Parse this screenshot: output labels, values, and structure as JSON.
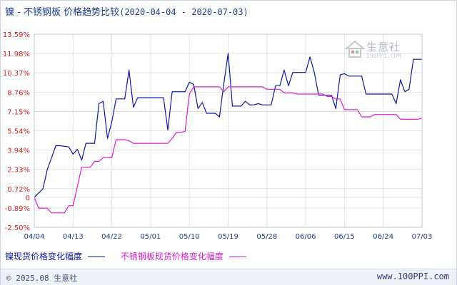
{
  "title": {
    "main": "镍 - 不锈钢板 价格趋势比较",
    "range": "(2020-04-04 - 2020-07-03)"
  },
  "legend": {
    "series1": "镍现货价格变化幅度",
    "series2": "不锈钢板现货价格变化幅度"
  },
  "footer": {
    "copyright": "© 2025.08 生意社",
    "url": "www.100PPI.com"
  },
  "watermark": {
    "text": "生意社",
    "url": "100PPI.COM"
  },
  "colors": {
    "series1": "#0a1aa8",
    "series2": "#e21bd9",
    "grid": "#e3e3e3",
    "axis_text": "#d02020",
    "x_text": "#1a3d8f"
  },
  "chart_data": {
    "type": "line",
    "title": "镍 - 不锈钢板 价格趋势比较(2020-04-04 - 2020-07-03)",
    "ylim": [
      -2.5,
      13.59
    ],
    "ytick_values": [
      13.59,
      11.98,
      10.37,
      8.76,
      7.15,
      5.54,
      3.94,
      2.33,
      0.72,
      0,
      -0.89,
      -2.5
    ],
    "ytick_labels": [
      "13.59%",
      "11.98%",
      "10.37%",
      "8.76%",
      "7.15%",
      "5.54%",
      "3.94%",
      "2.33%",
      "0.72%",
      "0",
      "-0.89%",
      "-2.50%"
    ],
    "xlim": [
      0,
      90
    ],
    "xtick_values": [
      0,
      9,
      18,
      27,
      36,
      45,
      54,
      63,
      72,
      81,
      90
    ],
    "xtick_labels": [
      "04/04",
      "04/13",
      "04/22",
      "05/01",
      "05/10",
      "05/19",
      "05/28",
      "06/06",
      "06/15",
      "06/24",
      "07/03"
    ],
    "grid": true,
    "legend_position": "bottom",
    "series": [
      {
        "name": "镍现货价格变化幅度",
        "x": [
          0,
          2,
          3,
          5,
          6,
          8,
          9,
          10,
          11,
          12,
          13,
          14,
          15,
          16,
          17,
          18,
          19,
          20,
          21,
          22,
          23,
          24,
          25,
          26,
          27,
          28,
          29,
          30,
          31,
          32,
          33,
          34,
          35,
          36,
          37,
          38,
          39,
          40,
          41,
          42,
          43,
          44,
          45,
          46,
          47,
          48,
          49,
          50,
          51,
          52,
          53,
          54,
          55,
          56,
          57,
          58,
          59,
          60,
          61,
          62,
          63,
          64,
          65,
          66,
          67,
          68,
          69,
          70,
          71,
          72,
          73,
          74,
          75,
          76,
          77,
          78,
          79,
          80,
          81,
          82,
          83,
          84,
          85,
          86,
          87,
          88,
          89,
          90
        ],
        "y": [
          0,
          0.7,
          2.3,
          4.3,
          4.3,
          4.2,
          3.6,
          4.0,
          3.1,
          4.5,
          4.5,
          4.5,
          7.8,
          8.0,
          4.9,
          6.3,
          8.2,
          8.2,
          8.2,
          10.6,
          7.5,
          8.3,
          8.3,
          8.3,
          8.3,
          8.3,
          8.3,
          8.3,
          5.6,
          8.8,
          8.8,
          8.8,
          8.8,
          9.6,
          9.4,
          7.4,
          7.9,
          7.0,
          7.0,
          7.0,
          6.7,
          9.5,
          12.0,
          7.6,
          7.6,
          7.6,
          8.0,
          7.7,
          7.7,
          7.8,
          7.7,
          7.7,
          7.7,
          9.3,
          9.3,
          10.6,
          9.3,
          10.4,
          10.4,
          10.4,
          10.4,
          11.7,
          10.4,
          8.5,
          8.5,
          8.5,
          8.5,
          7.4,
          10.2,
          10.3,
          10.1,
          10.1,
          10.1,
          10.1,
          8.6,
          8.6,
          8.6,
          8.6,
          8.6,
          8.6,
          8.6,
          7.8,
          9.8,
          8.8,
          9.0,
          11.5,
          11.5,
          11.5
        ]
      },
      {
        "name": "不锈钢板现货价格变化幅度",
        "x": [
          0,
          1,
          2,
          3,
          4,
          5,
          6,
          7,
          8,
          9,
          10,
          11,
          12,
          13,
          14,
          15,
          16,
          17,
          18,
          19,
          20,
          21,
          22,
          23,
          24,
          25,
          26,
          27,
          28,
          29,
          30,
          31,
          32,
          33,
          34,
          35,
          36,
          37,
          38,
          39,
          40,
          41,
          42,
          43,
          44,
          45,
          46,
          47,
          48,
          49,
          50,
          51,
          52,
          53,
          54,
          55,
          56,
          57,
          58,
          59,
          60,
          61,
          62,
          63,
          64,
          65,
          66,
          67,
          68,
          69,
          70,
          71,
          72,
          73,
          74,
          75,
          76,
          77,
          78,
          79,
          80,
          81,
          82,
          83,
          84,
          85,
          86,
          87,
          88,
          89,
          90
        ],
        "y": [
          0,
          -0.9,
          -0.9,
          -0.9,
          -1.3,
          -1.3,
          -1.3,
          -1.3,
          -0.7,
          -0.7,
          0.9,
          2.5,
          2.5,
          2.5,
          3.0,
          3.0,
          3.3,
          3.3,
          3.3,
          4.8,
          4.8,
          4.8,
          4.7,
          4.5,
          4.5,
          4.5,
          4.5,
          4.5,
          4.5,
          4.5,
          4.5,
          4.5,
          4.9,
          5.4,
          5.4,
          5.5,
          8.6,
          9.2,
          9.2,
          9.2,
          9.2,
          9.2,
          9.2,
          9.2,
          8.8,
          9.2,
          9.2,
          9.2,
          9.2,
          9.2,
          9.2,
          9.2,
          9.2,
          9.2,
          9.0,
          9.0,
          9.0,
          9.0,
          8.7,
          8.7,
          8.7,
          8.6,
          8.6,
          8.6,
          8.6,
          8.6,
          8.6,
          8.6,
          8.4,
          8.4,
          8.2,
          8.2,
          7.3,
          7.3,
          7.3,
          7.3,
          6.7,
          6.7,
          6.7,
          6.9,
          6.9,
          6.9,
          6.9,
          6.9,
          6.9,
          6.5,
          6.5,
          6.5,
          6.5,
          6.5,
          6.6
        ]
      }
    ]
  }
}
